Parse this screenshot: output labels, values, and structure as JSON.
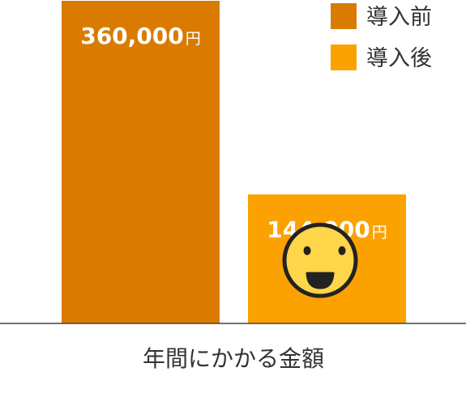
{
  "colors": {
    "before": "#d97b00",
    "after": "#fca102",
    "face": "#ffd54a",
    "face_outline": "#222222",
    "axis": "#444444"
  },
  "legend": {
    "items": [
      {
        "label": "導入前",
        "color": "#d97b00"
      },
      {
        "label": "導入後",
        "color": "#fca102"
      }
    ]
  },
  "chart_data": {
    "type": "bar",
    "categories": [
      "導入前",
      "導入後"
    ],
    "values": [
      360000,
      144000
    ],
    "data_labels": [
      {
        "number": "360,000",
        "unit": "円"
      },
      {
        "number": "144,000",
        "unit": "円"
      }
    ],
    "xlabel": "年間にかかる金額",
    "ylabel": "",
    "ylim": [
      0,
      360000
    ],
    "grid": false,
    "legend_position": "top-right",
    "annotation_icon": "smiley-face-icon"
  }
}
